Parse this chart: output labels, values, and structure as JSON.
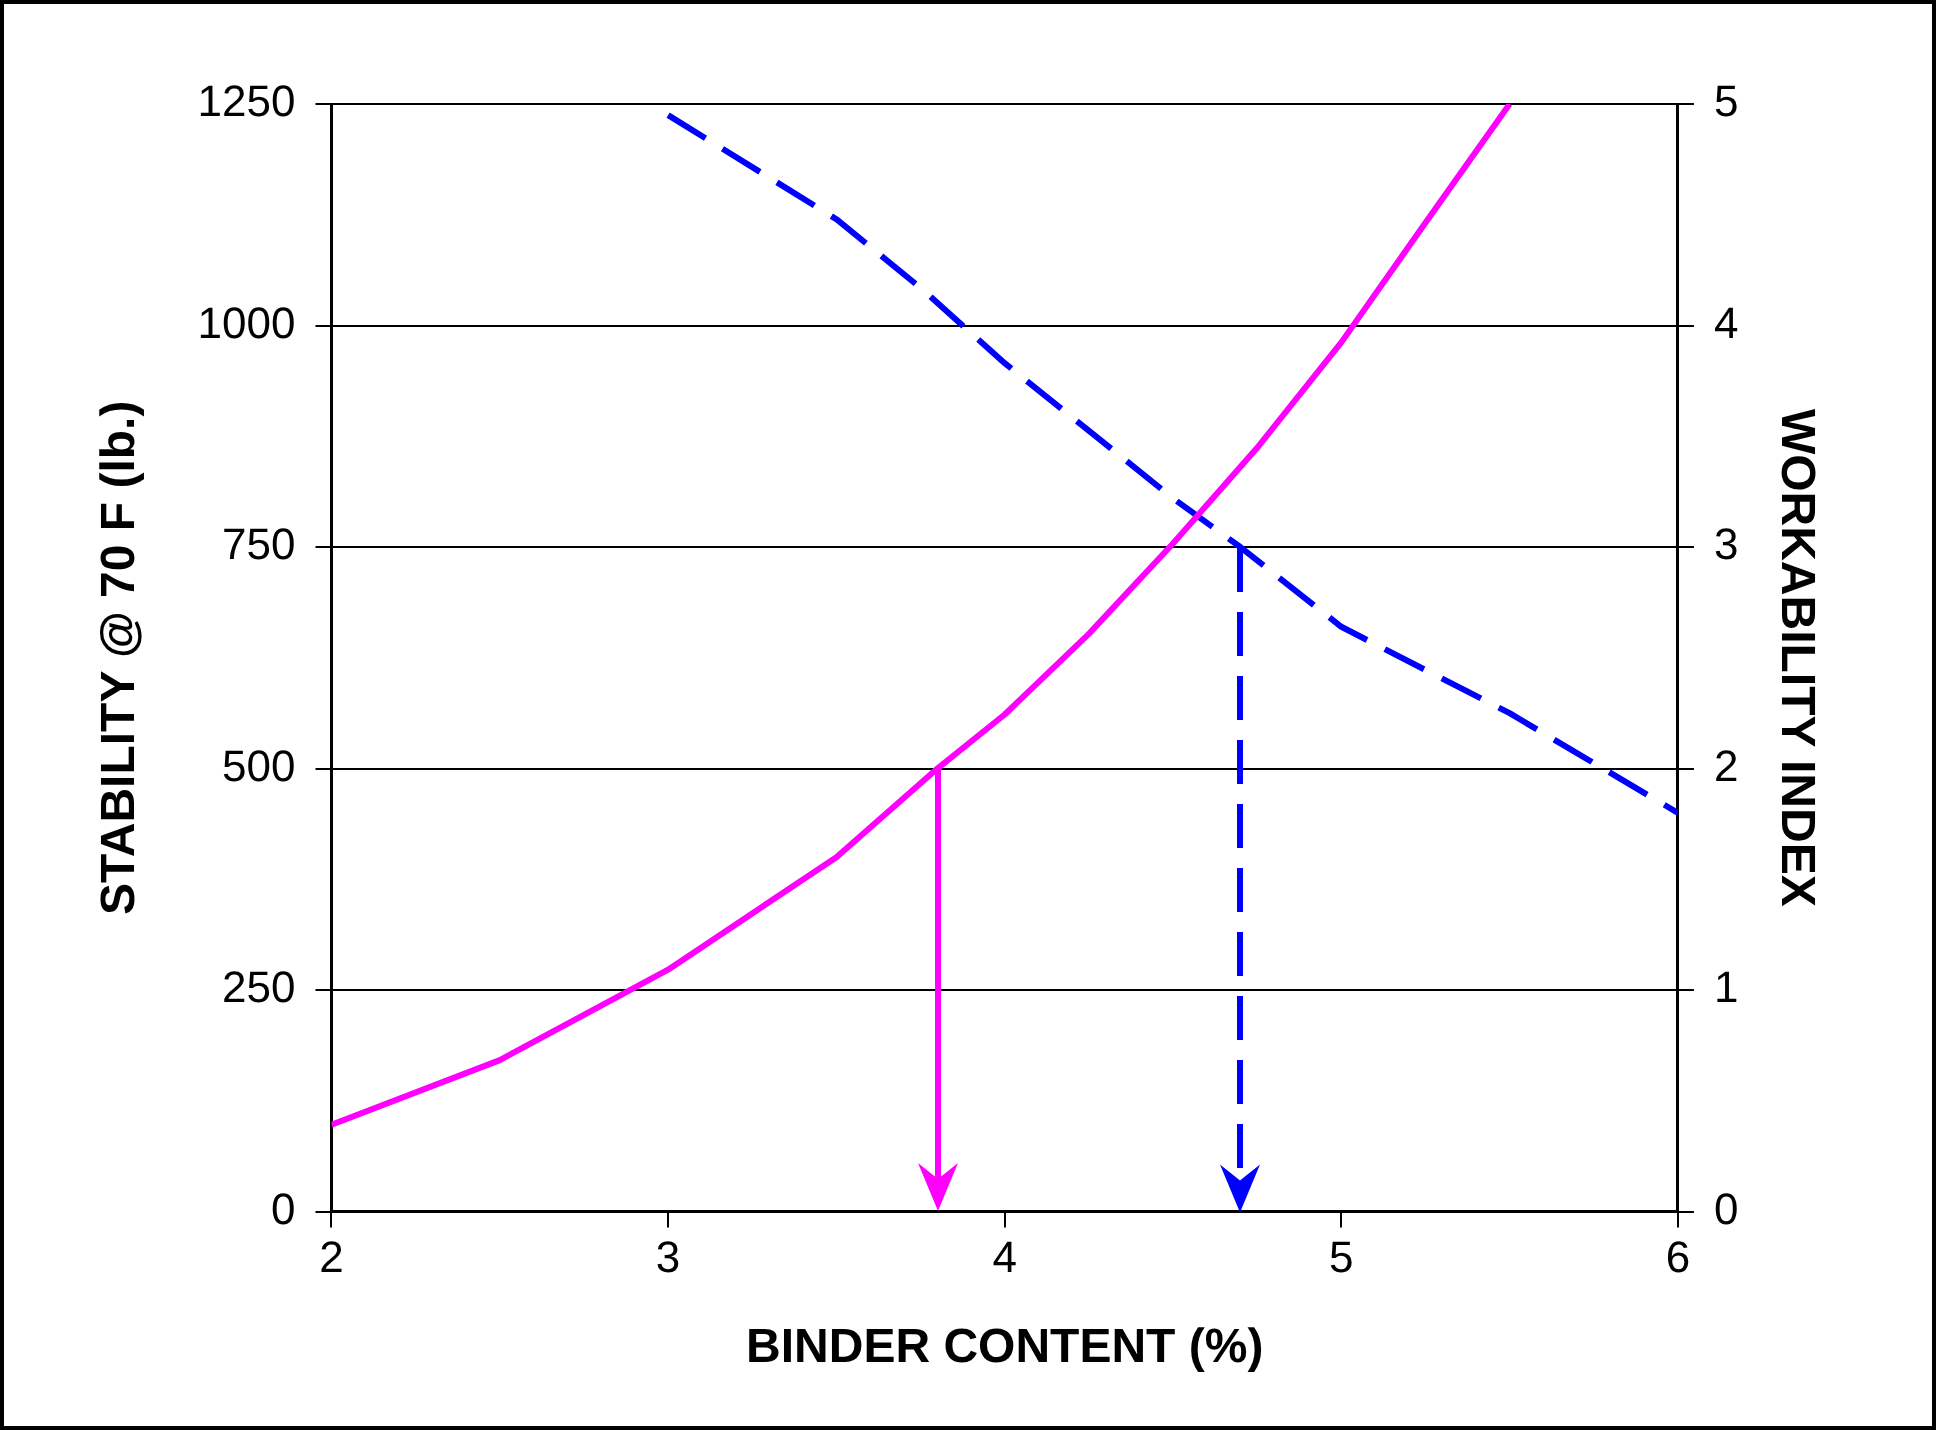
{
  "chart_data": {
    "type": "line",
    "xlabel": "BINDER CONTENT (%)",
    "ylabel": "STABILITY @ 70 F (lb.)",
    "y2label": "WORKABILITY INDEX",
    "xlim": [
      2,
      6
    ],
    "xticks": [
      2,
      3,
      4,
      5,
      6
    ],
    "ylim": [
      0,
      1250
    ],
    "yticks": [
      0,
      250,
      500,
      750,
      1000,
      1250
    ],
    "y2lim": [
      0,
      5
    ],
    "y2ticks": [
      0,
      1,
      2,
      3,
      4,
      5
    ],
    "grid": "y",
    "legend": false,
    "marker": "none",
    "series": [
      {
        "type": "line",
        "x": [
          2,
          2.5,
          3,
          3.5,
          3.8,
          4,
          4.25,
          4.5,
          4.75,
          5,
          5.25,
          5.5
        ],
        "values": [
          98,
          171,
          273,
          400,
          500,
          561,
          652,
          754,
          862,
          981,
          1116,
          1250
        ],
        "color": "#ff00ff",
        "line_style": "solid"
      },
      {
        "type": "line",
        "axis": "y2",
        "x": [
          3,
          3.5,
          3.75,
          4,
          4.5,
          4.7,
          5,
          5.5,
          6
        ],
        "values": [
          4.95,
          4.48,
          4.17,
          3.83,
          3.22,
          3.0,
          2.64,
          2.25,
          1.8
        ],
        "color": "#0000ff",
        "line_style": "dashed"
      }
    ]
  }
}
